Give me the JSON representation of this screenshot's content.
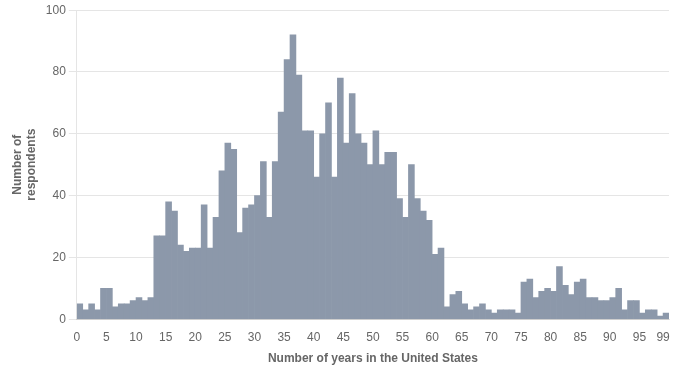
{
  "chart_data": {
    "type": "histogram",
    "ylabel": "Number of\nrespondents",
    "xlabel": "Number of years in the United States",
    "bins": [
      0,
      1,
      2,
      3,
      4,
      5,
      6,
      7,
      8,
      9,
      10,
      11,
      12,
      13,
      14,
      15,
      16,
      17,
      18,
      19,
      20,
      21,
      22,
      23,
      24,
      25,
      26,
      27,
      28,
      29,
      30,
      31,
      32,
      33,
      34,
      35,
      36,
      37,
      38,
      39,
      40,
      41,
      42,
      43,
      44,
      45,
      46,
      47,
      48,
      49,
      50,
      51,
      52,
      53,
      54,
      55,
      56,
      57,
      58,
      59,
      60,
      61,
      62,
      63,
      64,
      65,
      66,
      67,
      68,
      69,
      70,
      71,
      72,
      73,
      74,
      75,
      76,
      77,
      78,
      79,
      80,
      81,
      82,
      83,
      84,
      85,
      86,
      87,
      88,
      89,
      90,
      91,
      92,
      93,
      94,
      95,
      96,
      97,
      98,
      99,
      100
    ],
    "values": [
      5,
      3,
      5,
      3,
      10,
      10,
      4,
      5,
      5,
      6,
      7,
      6,
      7,
      27,
      27,
      38,
      35,
      24,
      22,
      23,
      23,
      37,
      23,
      33,
      48,
      57,
      55,
      28,
      36,
      37,
      40,
      51,
      33,
      51,
      67,
      84,
      92,
      79,
      61,
      61,
      46,
      60,
      70,
      46,
      78,
      57,
      73,
      60,
      57,
      50,
      61,
      50,
      54,
      54,
      39,
      33,
      50,
      39,
      35,
      32,
      21,
      23,
      4,
      8,
      9,
      5,
      3,
      4,
      5,
      3,
      2,
      3,
      3,
      3,
      2,
      12,
      13,
      7,
      9,
      10,
      9,
      17,
      11,
      8,
      12,
      13,
      7,
      7,
      6,
      6,
      7,
      10,
      3,
      6,
      6,
      2,
      3,
      3,
      1,
      2
    ],
    "color": "#8c98aa",
    "xlim": [
      0,
      100
    ],
    "xticks": [
      0,
      5,
      10,
      15,
      20,
      25,
      30,
      35,
      40,
      45,
      50,
      55,
      60,
      65,
      70,
      75,
      80,
      85,
      90,
      95,
      99
    ],
    "ylim": [
      0,
      100
    ],
    "yticks": [
      0,
      20,
      40,
      60,
      80,
      100
    ],
    "grid": true
  }
}
